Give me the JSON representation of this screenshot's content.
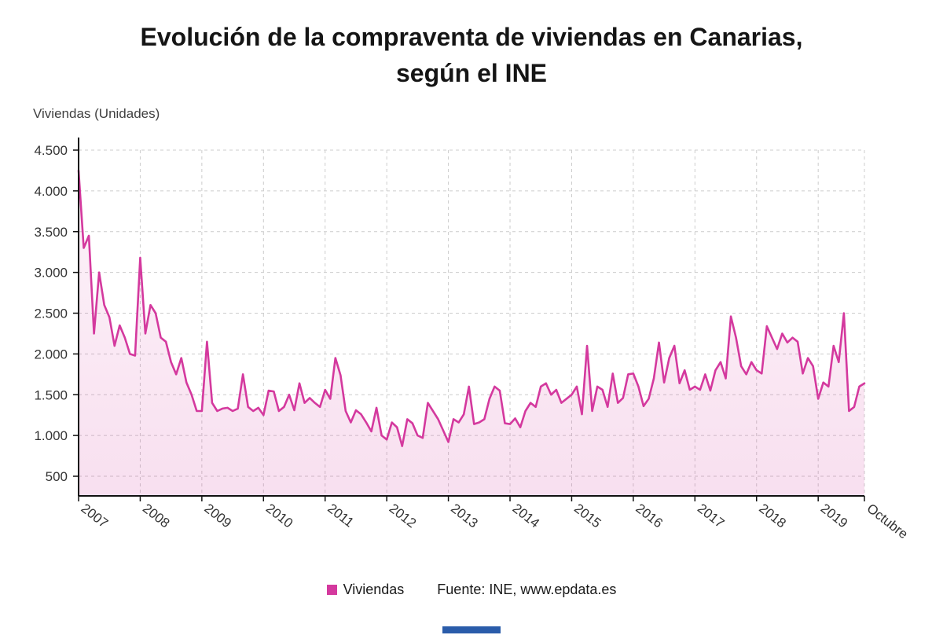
{
  "title": {
    "line1": "Evolución de la compraventa de viviendas en Canarias,",
    "line2": "según el INE"
  },
  "axis_title": "Viviendas (Unidades)",
  "legend": {
    "label": "Viviendas",
    "source": "Fuente: INE, www.epdata.es"
  },
  "colors": {
    "line": "#d4399e",
    "fill_top": "rgba(212,57,158,0.06)",
    "fill_bottom": "rgba(212,57,158,0.16)",
    "grid": "#cccccc",
    "axis": "#111111",
    "footer_bar": "#2a5caa"
  },
  "chart_data": {
    "type": "area",
    "title": "Evolución de la compraventa de viviendas en Canarias, según el INE",
    "xlabel": "",
    "ylabel": "Viviendas (Unidades)",
    "ylim": [
      500,
      4500
    ],
    "grid": true,
    "legend_position": "bottom",
    "y_ticks": [
      {
        "value": 500,
        "label": "500"
      },
      {
        "value": 1000,
        "label": "1.000"
      },
      {
        "value": 1500,
        "label": "1.500"
      },
      {
        "value": 2000,
        "label": "2.000"
      },
      {
        "value": 2500,
        "label": "2.500"
      },
      {
        "value": 3000,
        "label": "3.000"
      },
      {
        "value": 3500,
        "label": "3.500"
      },
      {
        "value": 4000,
        "label": "4.000"
      },
      {
        "value": 4500,
        "label": "4.500"
      }
    ],
    "x_ticks": [
      {
        "index": 0,
        "label": "2007"
      },
      {
        "index": 12,
        "label": "2008"
      },
      {
        "index": 24,
        "label": "2009"
      },
      {
        "index": 36,
        "label": "2010"
      },
      {
        "index": 48,
        "label": "2011"
      },
      {
        "index": 60,
        "label": "2012"
      },
      {
        "index": 72,
        "label": "2013"
      },
      {
        "index": 84,
        "label": "2014"
      },
      {
        "index": 96,
        "label": "2015"
      },
      {
        "index": 108,
        "label": "2016"
      },
      {
        "index": 120,
        "label": "2017"
      },
      {
        "index": 132,
        "label": "2018"
      },
      {
        "index": 144,
        "label": "2019"
      },
      {
        "index": 153,
        "label": "Octubre"
      }
    ],
    "series": [
      {
        "name": "Viviendas",
        "start": "2007-01",
        "end": "2019-10",
        "values": [
          4250,
          3300,
          3450,
          2250,
          3000,
          2600,
          2450,
          2100,
          2350,
          2200,
          2000,
          1980,
          3180,
          2250,
          2600,
          2500,
          2200,
          2150,
          1900,
          1750,
          1950,
          1650,
          1500,
          1300,
          1300,
          2150,
          1400,
          1300,
          1330,
          1340,
          1300,
          1330,
          1750,
          1350,
          1300,
          1340,
          1250,
          1550,
          1540,
          1300,
          1350,
          1500,
          1310,
          1640,
          1400,
          1460,
          1400,
          1350,
          1560,
          1450,
          1950,
          1740,
          1300,
          1160,
          1310,
          1260,
          1160,
          1050,
          1340,
          1000,
          950,
          1160,
          1100,
          870,
          1200,
          1150,
          1000,
          970,
          1400,
          1300,
          1200,
          1060,
          920,
          1200,
          1160,
          1260,
          1600,
          1140,
          1160,
          1200,
          1450,
          1600,
          1550,
          1150,
          1140,
          1210,
          1100,
          1300,
          1400,
          1350,
          1600,
          1640,
          1500,
          1560,
          1400,
          1450,
          1500,
          1600,
          1260,
          2100,
          1300,
          1600,
          1560,
          1350,
          1760,
          1400,
          1460,
          1750,
          1760,
          1600,
          1360,
          1450,
          1700,
          2140,
          1650,
          1950,
          2100,
          1640,
          1800,
          1560,
          1600,
          1560,
          1750,
          1550,
          1800,
          1900,
          1700,
          2460,
          2200,
          1850,
          1750,
          1900,
          1800,
          1760,
          2340,
          2200,
          2060,
          2250,
          2140,
          2200,
          2150,
          1760,
          1950,
          1850,
          1450,
          1650,
          1600,
          2100,
          1900,
          2500,
          1300,
          1350,
          1600,
          1640
        ]
      }
    ]
  }
}
